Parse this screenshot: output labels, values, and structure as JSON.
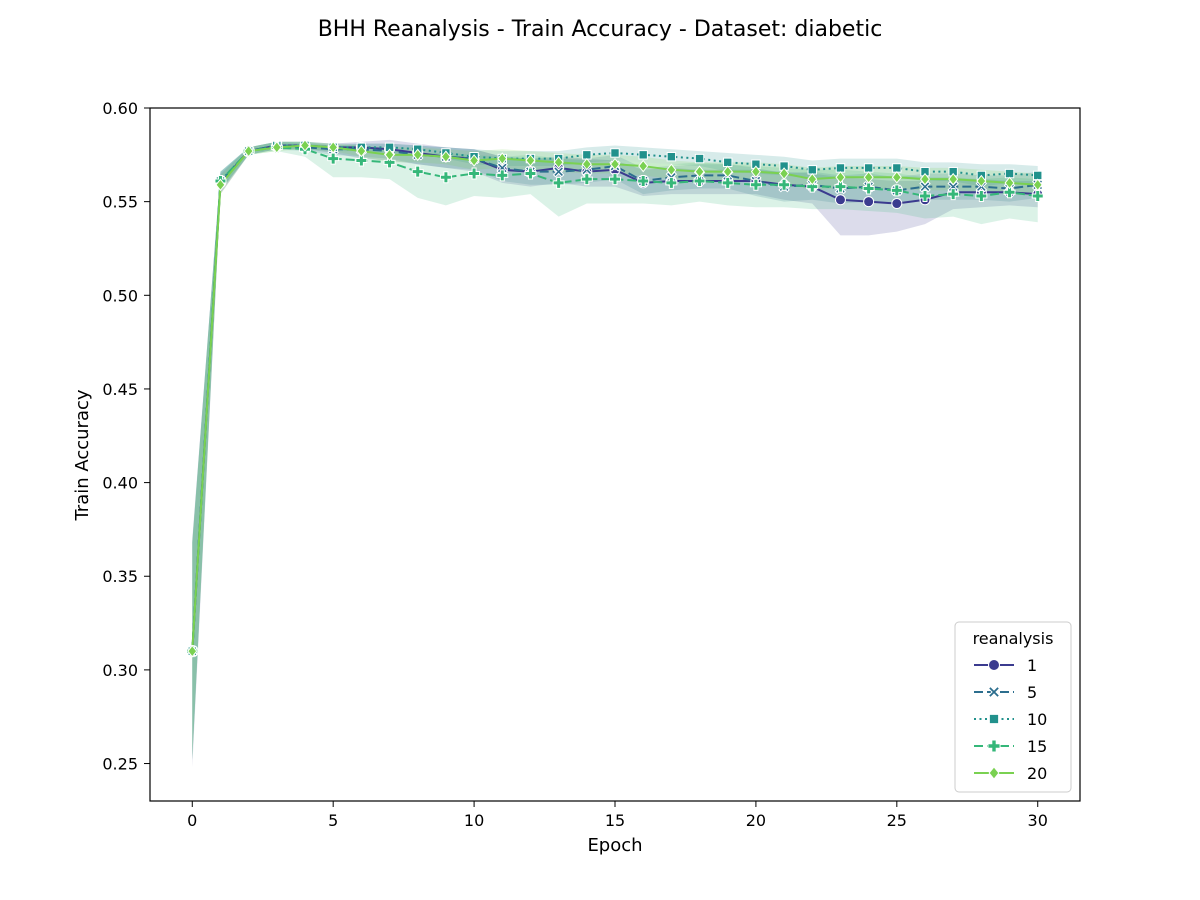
{
  "chart_data": {
    "type": "line",
    "title": "BHH Reanalysis - Train Accuracy - Dataset: diabetic",
    "xlabel": "Epoch",
    "ylabel": "Train Accuracy",
    "xlim": [
      -1.5,
      31.5
    ],
    "ylim": [
      0.23,
      0.6
    ],
    "xticks": [
      0,
      5,
      10,
      15,
      20,
      25,
      30
    ],
    "yticks": [
      0.25,
      0.3,
      0.35,
      0.4,
      0.45,
      0.5,
      0.55,
      0.6
    ],
    "ytick_labels": [
      "0.25",
      "0.30",
      "0.35",
      "0.40",
      "0.45",
      "0.50",
      "0.55",
      "0.60"
    ],
    "grid": false,
    "legend": {
      "title": "reanalysis",
      "position": "bottom-right"
    },
    "x": [
      0,
      1,
      2,
      3,
      4,
      5,
      6,
      7,
      8,
      9,
      10,
      11,
      12,
      13,
      14,
      15,
      16,
      17,
      18,
      19,
      20,
      21,
      22,
      23,
      24,
      25,
      26,
      27,
      28,
      29,
      30
    ],
    "series": [
      {
        "name": "1",
        "color": "#3b3b8f",
        "dash": "solid",
        "marker": "circle",
        "values": [
          0.31,
          0.56,
          0.577,
          0.58,
          0.58,
          0.579,
          0.579,
          0.578,
          0.576,
          0.574,
          0.573,
          0.567,
          0.566,
          0.568,
          0.566,
          0.567,
          0.56,
          0.561,
          0.561,
          0.561,
          0.561,
          0.559,
          0.558,
          0.551,
          0.55,
          0.549,
          0.551,
          0.555,
          0.555,
          0.555,
          0.554
        ],
        "ci_upper": [
          0.37,
          0.565,
          0.579,
          0.582,
          0.582,
          0.581,
          0.582,
          0.583,
          0.581,
          0.579,
          0.578,
          0.574,
          0.573,
          0.574,
          0.573,
          0.572,
          0.567,
          0.568,
          0.567,
          0.567,
          0.567,
          0.566,
          0.565,
          0.563,
          0.562,
          0.561,
          0.561,
          0.562,
          0.562,
          0.561,
          0.561
        ],
        "ci_lower": [
          0.248,
          0.554,
          0.575,
          0.578,
          0.578,
          0.576,
          0.573,
          0.572,
          0.57,
          0.568,
          0.566,
          0.56,
          0.558,
          0.56,
          0.558,
          0.558,
          0.553,
          0.554,
          0.554,
          0.554,
          0.554,
          0.551,
          0.549,
          0.532,
          0.532,
          0.534,
          0.538,
          0.546,
          0.547,
          0.548,
          0.547
        ]
      },
      {
        "name": "5",
        "color": "#2c6e8e",
        "dash": "dashed",
        "marker": "x",
        "values": [
          0.31,
          0.561,
          0.577,
          0.58,
          0.579,
          0.578,
          0.578,
          0.577,
          0.575,
          0.574,
          0.573,
          0.568,
          0.566,
          0.566,
          0.567,
          0.569,
          0.561,
          0.563,
          0.564,
          0.564,
          0.561,
          0.558,
          0.559,
          0.557,
          0.558,
          0.556,
          0.558,
          0.558,
          0.558,
          0.557,
          0.559
        ],
        "ci_upper": [
          0.368,
          0.566,
          0.579,
          0.582,
          0.581,
          0.58,
          0.581,
          0.581,
          0.58,
          0.579,
          0.578,
          0.574,
          0.573,
          0.573,
          0.573,
          0.575,
          0.568,
          0.569,
          0.57,
          0.57,
          0.568,
          0.565,
          0.566,
          0.564,
          0.565,
          0.563,
          0.565,
          0.565,
          0.564,
          0.564,
          0.566
        ],
        "ci_lower": [
          0.252,
          0.555,
          0.575,
          0.578,
          0.577,
          0.575,
          0.574,
          0.573,
          0.57,
          0.568,
          0.567,
          0.561,
          0.559,
          0.559,
          0.56,
          0.562,
          0.554,
          0.556,
          0.557,
          0.557,
          0.553,
          0.55,
          0.551,
          0.549,
          0.55,
          0.549,
          0.551,
          0.551,
          0.551,
          0.55,
          0.552
        ]
      },
      {
        "name": "10",
        "color": "#21918c",
        "dash": "dotted",
        "marker": "square",
        "values": [
          0.31,
          0.561,
          0.577,
          0.58,
          0.58,
          0.579,
          0.579,
          0.579,
          0.578,
          0.576,
          0.574,
          0.573,
          0.573,
          0.573,
          0.575,
          0.576,
          0.575,
          0.574,
          0.573,
          0.571,
          0.57,
          0.569,
          0.567,
          0.568,
          0.568,
          0.568,
          0.566,
          0.566,
          0.564,
          0.565,
          0.564
        ],
        "ci_upper": [
          0.368,
          0.566,
          0.579,
          0.582,
          0.582,
          0.581,
          0.581,
          0.581,
          0.58,
          0.579,
          0.578,
          0.577,
          0.577,
          0.577,
          0.579,
          0.58,
          0.579,
          0.578,
          0.577,
          0.576,
          0.575,
          0.574,
          0.572,
          0.573,
          0.573,
          0.573,
          0.571,
          0.571,
          0.57,
          0.57,
          0.569
        ],
        "ci_lower": [
          0.252,
          0.556,
          0.575,
          0.578,
          0.578,
          0.577,
          0.577,
          0.576,
          0.575,
          0.573,
          0.57,
          0.569,
          0.569,
          0.569,
          0.571,
          0.572,
          0.571,
          0.57,
          0.569,
          0.566,
          0.565,
          0.564,
          0.562,
          0.563,
          0.563,
          0.563,
          0.561,
          0.561,
          0.558,
          0.56,
          0.559
        ]
      },
      {
        "name": "15",
        "color": "#35b779",
        "dash": "dashed",
        "marker": "plus",
        "values": [
          0.31,
          0.561,
          0.577,
          0.579,
          0.578,
          0.573,
          0.572,
          0.571,
          0.566,
          0.563,
          0.565,
          0.564,
          0.565,
          0.56,
          0.562,
          0.562,
          0.561,
          0.56,
          0.561,
          0.56,
          0.559,
          0.559,
          0.558,
          0.558,
          0.557,
          0.556,
          0.553,
          0.554,
          0.553,
          0.555,
          0.553
        ],
        "ci_upper": [
          0.368,
          0.566,
          0.579,
          0.582,
          0.582,
          0.58,
          0.58,
          0.578,
          0.576,
          0.576,
          0.575,
          0.574,
          0.575,
          0.573,
          0.572,
          0.572,
          0.571,
          0.57,
          0.571,
          0.57,
          0.569,
          0.568,
          0.567,
          0.567,
          0.566,
          0.565,
          0.563,
          0.563,
          0.562,
          0.563,
          0.562
        ],
        "ci_lower": [
          0.252,
          0.556,
          0.575,
          0.577,
          0.574,
          0.563,
          0.563,
          0.562,
          0.552,
          0.548,
          0.553,
          0.552,
          0.554,
          0.542,
          0.549,
          0.549,
          0.549,
          0.548,
          0.55,
          0.548,
          0.547,
          0.547,
          0.546,
          0.546,
          0.545,
          0.544,
          0.541,
          0.542,
          0.538,
          0.541,
          0.539
        ]
      },
      {
        "name": "20",
        "color": "#7ad151",
        "dash": "solid",
        "marker": "diamond",
        "values": [
          0.31,
          0.559,
          0.577,
          0.579,
          0.58,
          0.579,
          0.577,
          0.575,
          0.575,
          0.574,
          0.572,
          0.573,
          0.572,
          0.571,
          0.57,
          0.57,
          0.569,
          0.567,
          0.566,
          0.566,
          0.566,
          0.565,
          0.562,
          0.563,
          0.563,
          0.563,
          0.562,
          0.562,
          0.561,
          0.56,
          0.559
        ],
        "ci_upper": [
          0.368,
          0.564,
          0.579,
          0.582,
          0.582,
          0.581,
          0.58,
          0.579,
          0.579,
          0.578,
          0.577,
          0.578,
          0.577,
          0.576,
          0.575,
          0.575,
          0.574,
          0.572,
          0.571,
          0.571,
          0.571,
          0.57,
          0.568,
          0.569,
          0.569,
          0.569,
          0.568,
          0.568,
          0.567,
          0.566,
          0.565
        ],
        "ci_lower": [
          0.252,
          0.554,
          0.575,
          0.577,
          0.578,
          0.577,
          0.574,
          0.571,
          0.571,
          0.57,
          0.567,
          0.568,
          0.567,
          0.566,
          0.565,
          0.565,
          0.564,
          0.562,
          0.561,
          0.561,
          0.561,
          0.56,
          0.556,
          0.557,
          0.557,
          0.557,
          0.556,
          0.556,
          0.555,
          0.554,
          0.553
        ]
      }
    ]
  }
}
